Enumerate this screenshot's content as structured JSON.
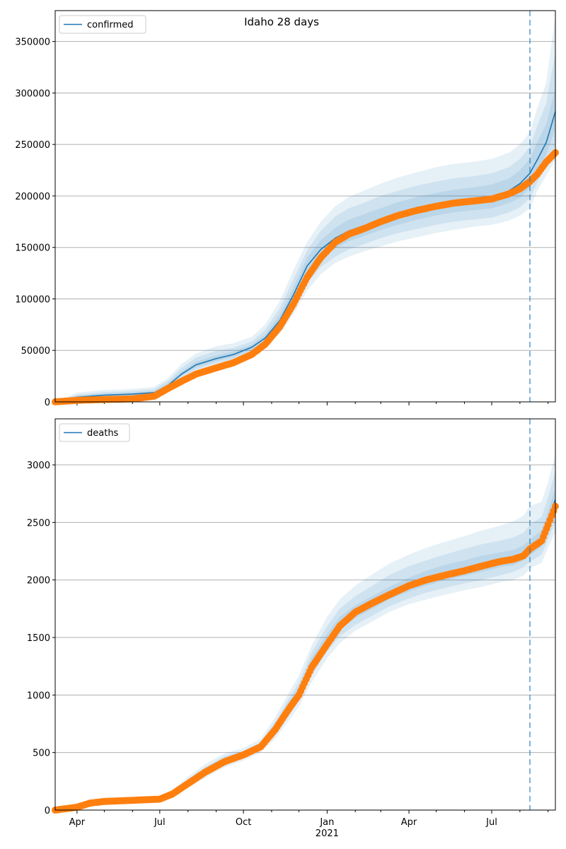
{
  "chart_data": [
    {
      "type": "line",
      "title": "Idaho 28 days",
      "series": [
        {
          "name": "confirmed",
          "color": "#1f77b4"
        },
        {
          "name": "",
          "color": "#ff7f0e"
        }
      ],
      "xlim": [
        "2020-03-08",
        "2021-09-09"
      ],
      "ylim": [
        0,
        380000
      ],
      "yticks": [
        0,
        50000,
        100000,
        150000,
        200000,
        250000,
        300000,
        350000
      ],
      "legend": "top-left",
      "grid": "horizontal",
      "forecast_start": "2021-08-12",
      "x": [
        "2020-03-08",
        "2020-04-01",
        "2020-05-01",
        "2020-06-01",
        "2020-06-25",
        "2020-07-10",
        "2020-07-25",
        "2020-08-10",
        "2020-09-01",
        "2020-09-20",
        "2020-10-10",
        "2020-10-25",
        "2020-11-10",
        "2020-11-25",
        "2020-12-10",
        "2020-12-25",
        "2021-01-10",
        "2021-01-25",
        "2021-02-10",
        "2021-03-01",
        "2021-03-20",
        "2021-04-10",
        "2021-05-01",
        "2021-05-20",
        "2021-06-10",
        "2021-07-01",
        "2021-07-20",
        "2021-08-01",
        "2021-08-12",
        "2021-08-20",
        "2021-08-30",
        "2021-09-09"
      ],
      "observed": [
        0,
        1500,
        2300,
        2900,
        5500,
        13000,
        20000,
        27000,
        33000,
        38000,
        46000,
        56000,
        73000,
        95000,
        121000,
        140000,
        155000,
        163000,
        168000,
        175000,
        181000,
        186000,
        190000,
        193000,
        195000,
        197000,
        202000,
        207000,
        214000,
        221000,
        233000,
        242000
      ],
      "median": [
        0,
        4500,
        6500,
        7500,
        9000,
        16000,
        27000,
        36000,
        42000,
        46000,
        53000,
        62000,
        79000,
        104000,
        132000,
        148000,
        159000,
        166000,
        171000,
        177000,
        183000,
        188000,
        192000,
        195000,
        197000,
        199000,
        205000,
        212000,
        222000,
        235000,
        252000,
        282000
      ],
      "bands": [
        {
          "low": [
            0,
            1000,
            2500,
            3000,
            5500,
            12500,
            22000,
            29000,
            35000,
            39000,
            46000,
            54000,
            66000,
            85000,
            108000,
            124000,
            135000,
            141000,
            146000,
            151000,
            156000,
            160000,
            164000,
            167000,
            170000,
            172000,
            176000,
            181000,
            188000,
            205000,
            220000,
            235000
          ],
          "high": [
            0,
            9000,
            11500,
            12500,
            14500,
            23000,
            37000,
            47000,
            54000,
            57000,
            63000,
            75000,
            98000,
            128000,
            155000,
            175000,
            190000,
            199000,
            205000,
            212000,
            218000,
            223000,
            228000,
            231000,
            233000,
            236000,
            242000,
            250000,
            262000,
            285000,
            310000,
            375000
          ]
        },
        {
          "low": [
            0,
            1500,
            3500,
            4000,
            6500,
            13500,
            24000,
            31500,
            37500,
            41500,
            48000,
            57000,
            70000,
            91000,
            115000,
            131000,
            141000,
            148000,
            153000,
            159000,
            164000,
            168000,
            172000,
            175000,
            177000,
            179000,
            184000,
            189000,
            198000,
            213000,
            230000,
            250000
          ],
          "high": [
            0,
            7000,
            9500,
            10500,
            12500,
            20500,
            33000,
            43000,
            49500,
            52500,
            58500,
            70000,
            91000,
            119000,
            147000,
            166000,
            180000,
            188000,
            193000,
            200000,
            205000,
            210000,
            214000,
            217000,
            219000,
            222000,
            228000,
            236000,
            248000,
            268000,
            290000,
            340000
          ]
        },
        {
          "low": [
            0,
            2500,
            4500,
            5000,
            7500,
            14500,
            25500,
            33500,
            39500,
            43500,
            50500,
            59500,
            74000,
            97000,
            123000,
            139000,
            149000,
            156000,
            161000,
            167000,
            172000,
            177000,
            181000,
            184000,
            186000,
            188000,
            193000,
            198000,
            208000,
            222000,
            240000,
            265000
          ],
          "high": [
            0,
            6000,
            8000,
            9000,
            10500,
            18000,
            29500,
            39000,
            45000,
            49000,
            55500,
            65500,
            84500,
            111000,
            140000,
            157000,
            169000,
            177000,
            182000,
            188000,
            194000,
            199000,
            203000,
            206000,
            208000,
            211000,
            217000,
            225000,
            236000,
            252000,
            270000,
            305000
          ]
        }
      ]
    },
    {
      "type": "line",
      "series": [
        {
          "name": "deaths",
          "color": "#1f77b4"
        },
        {
          "name": "",
          "color": "#ff7f0e"
        }
      ],
      "xlim": [
        "2020-03-08",
        "2021-09-09"
      ],
      "ylim": [
        0,
        3400
      ],
      "yticks": [
        0,
        500,
        1000,
        1500,
        2000,
        2500,
        3000
      ],
      "xticks": [
        "Apr",
        "Jul",
        "Oct",
        "Jan",
        "Apr",
        "Jul"
      ],
      "xtick_dates": [
        "2020-04-01",
        "2020-07-01",
        "2020-10-01",
        "2021-01-01",
        "2021-04-01",
        "2021-07-01"
      ],
      "year_label": "2021",
      "legend": "top-left",
      "grid": "horizontal",
      "forecast_start": "2021-08-12",
      "x": [
        "2020-03-08",
        "2020-04-01",
        "2020-04-15",
        "2020-05-01",
        "2020-06-01",
        "2020-07-01",
        "2020-07-15",
        "2020-08-01",
        "2020-08-20",
        "2020-09-10",
        "2020-10-01",
        "2020-10-20",
        "2020-11-05",
        "2020-11-20",
        "2020-12-01",
        "2020-12-15",
        "2021-01-01",
        "2021-01-15",
        "2021-02-01",
        "2021-02-20",
        "2021-03-10",
        "2021-04-01",
        "2021-04-20",
        "2021-05-10",
        "2021-06-01",
        "2021-06-20",
        "2021-07-10",
        "2021-07-25",
        "2021-08-05",
        "2021-08-12",
        "2021-08-25",
        "2021-09-01",
        "2021-09-09"
      ],
      "observed": [
        0,
        25,
        60,
        75,
        85,
        95,
        140,
        230,
        330,
        420,
        480,
        550,
        700,
        880,
        1000,
        1240,
        1440,
        1600,
        1720,
        1800,
        1870,
        1950,
        2000,
        2040,
        2080,
        2120,
        2160,
        2180,
        2210,
        2270,
        2340,
        2480,
        2640
      ],
      "median": [
        0,
        25,
        60,
        75,
        85,
        95,
        145,
        240,
        340,
        430,
        480,
        550,
        710,
        900,
        1030,
        1270,
        1480,
        1620,
        1720,
        1800,
        1880,
        1960,
        2010,
        2060,
        2100,
        2140,
        2170,
        2190,
        2230,
        2280,
        2360,
        2520,
        2700
      ],
      "bands": [
        {
          "low": [
            0,
            20,
            55,
            70,
            80,
            90,
            125,
            195,
            280,
            370,
            430,
            500,
            620,
            780,
            900,
            1110,
            1320,
            1450,
            1560,
            1640,
            1720,
            1790,
            1830,
            1870,
            1910,
            1940,
            1980,
            2000,
            2040,
            2100,
            2150,
            2280,
            2420
          ],
          "high": [
            0,
            30,
            65,
            80,
            90,
            100,
            170,
            290,
            400,
            490,
            540,
            620,
            810,
            1020,
            1170,
            1430,
            1680,
            1830,
            1950,
            2050,
            2140,
            2220,
            2280,
            2330,
            2380,
            2430,
            2470,
            2510,
            2560,
            2640,
            2680,
            2850,
            3100
          ]
        },
        {
          "low": [
            0,
            21,
            57,
            72,
            82,
            92,
            132,
            210,
            300,
            390,
            450,
            520,
            650,
            820,
            950,
            1170,
            1380,
            1510,
            1610,
            1690,
            1770,
            1840,
            1890,
            1930,
            1970,
            2000,
            2040,
            2070,
            2110,
            2160,
            2220,
            2360,
            2500
          ],
          "high": [
            0,
            29,
            63,
            78,
            88,
            98,
            160,
            270,
            375,
            470,
            515,
            590,
            770,
            970,
            1110,
            1370,
            1600,
            1750,
            1860,
            1950,
            2040,
            2120,
            2170,
            2220,
            2270,
            2310,
            2340,
            2370,
            2410,
            2480,
            2550,
            2720,
            2950
          ]
        },
        {
          "low": [
            0,
            23,
            58,
            73,
            83,
            93,
            138,
            224,
            320,
            410,
            465,
            535,
            680,
            860,
            990,
            1220,
            1430,
            1570,
            1670,
            1750,
            1830,
            1900,
            1950,
            1995,
            2035,
            2070,
            2110,
            2130,
            2170,
            2210,
            2290,
            2440,
            2600
          ],
          "high": [
            0,
            27,
            62,
            77,
            87,
            97,
            152,
            256,
            360,
            450,
            495,
            565,
            740,
            940,
            1070,
            1320,
            1530,
            1680,
            1780,
            1860,
            1940,
            2020,
            2080,
            2130,
            2170,
            2210,
            2240,
            2260,
            2300,
            2350,
            2430,
            2600,
            2800
          ]
        }
      ]
    }
  ]
}
